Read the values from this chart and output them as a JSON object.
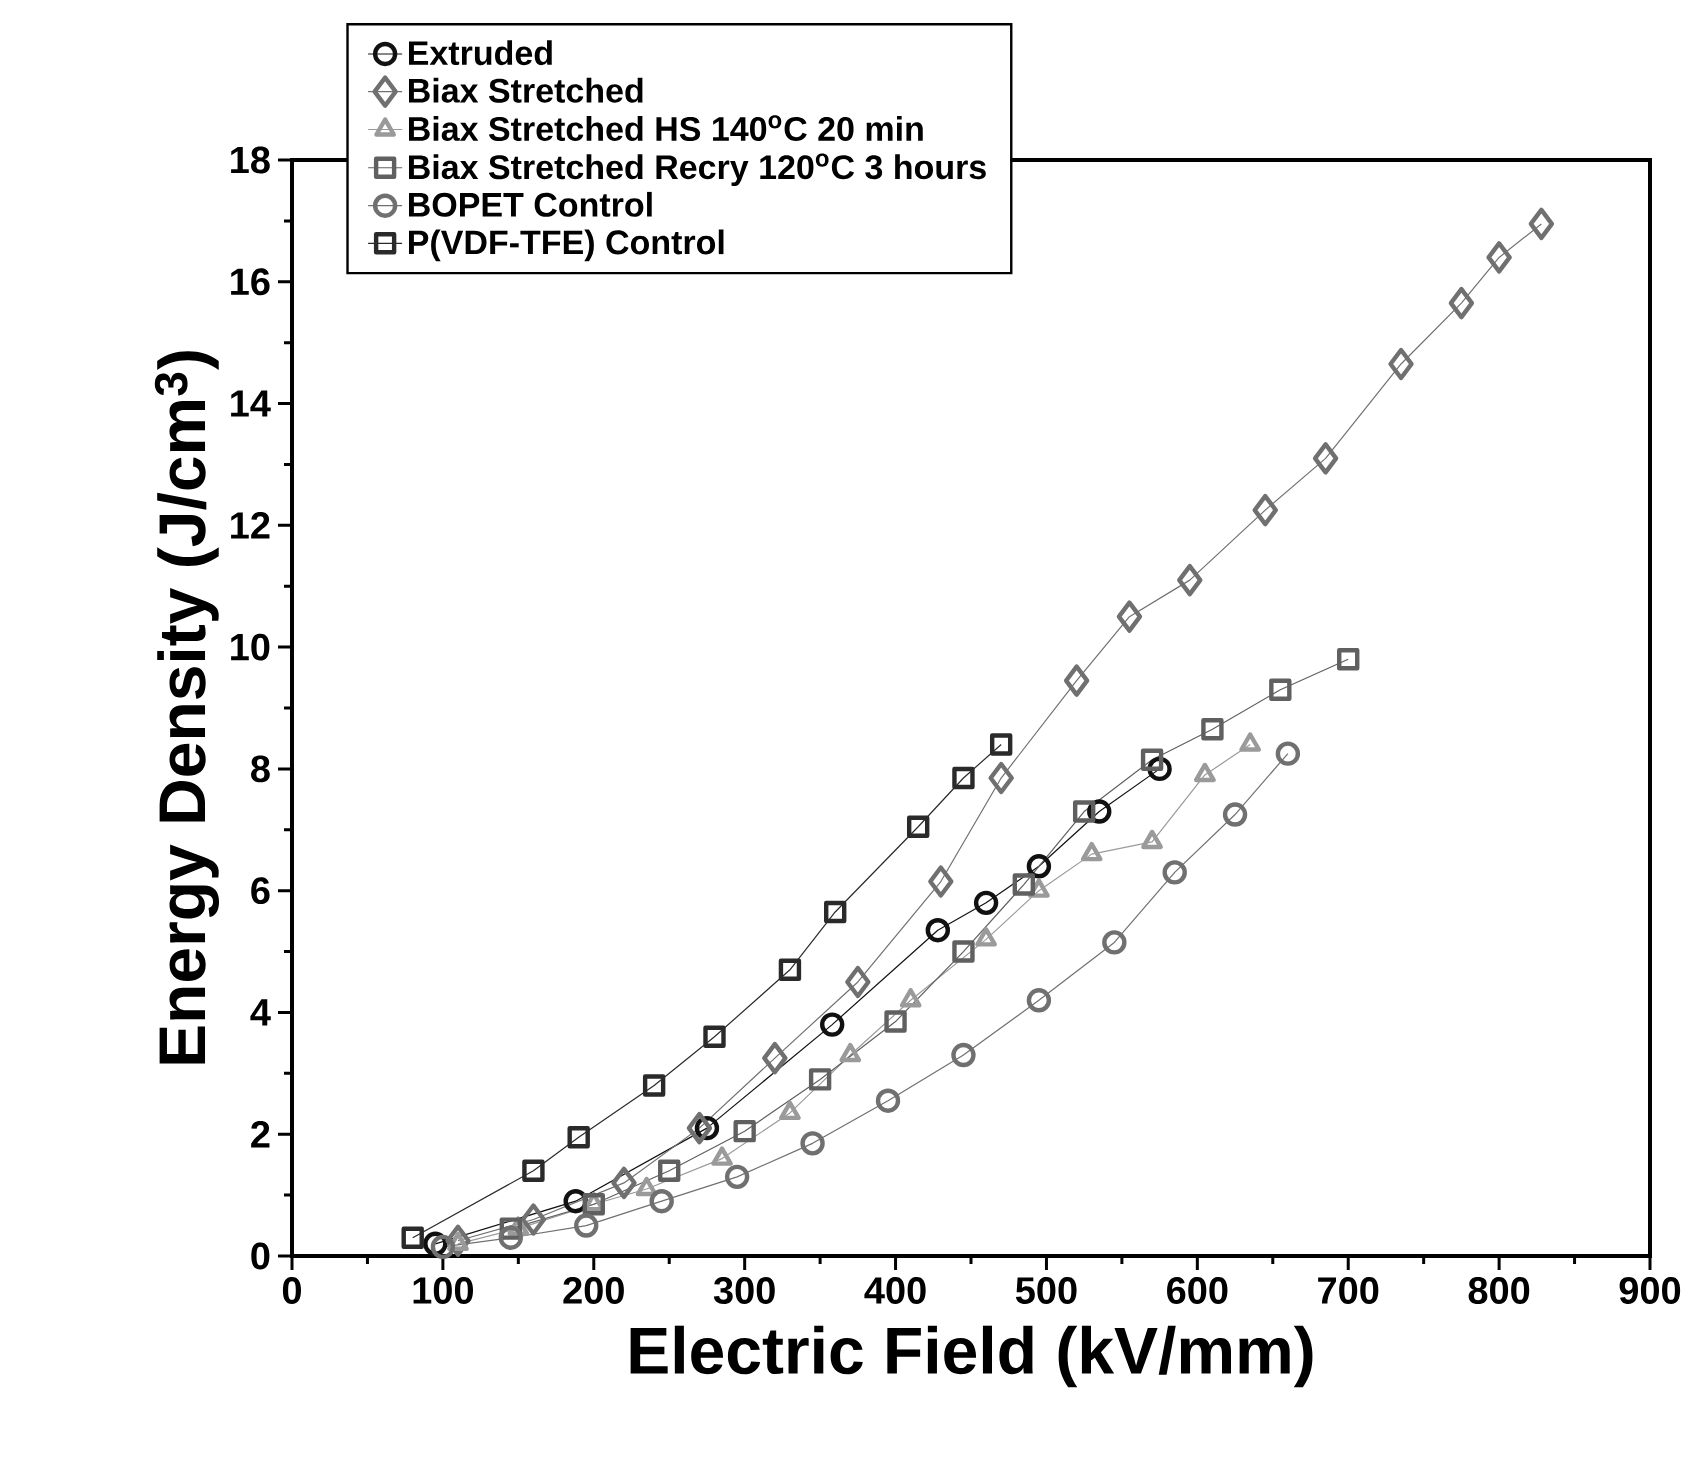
{
  "chart_data": {
    "type": "line",
    "xlabel": "Electric Field (kV/mm)",
    "ylabel": "Energy Density (J/cm$^{3}$)",
    "xlim": [
      0,
      900
    ],
    "xticks": [
      0,
      100,
      200,
      300,
      400,
      500,
      600,
      700,
      800,
      900
    ],
    "ylim": [
      0,
      18
    ],
    "yticks": [
      0,
      2,
      4,
      6,
      8,
      10,
      12,
      14,
      16,
      18
    ],
    "legend": "top left",
    "line_style": "solid",
    "grid": false,
    "series": [
      {
        "name": "Extruded",
        "color": "#111111",
        "marker": "circle",
        "x": [
          95,
          188,
          275,
          358,
          428,
          460,
          495,
          535,
          575
        ],
        "values": [
          0.2,
          0.9,
          2.1,
          3.8,
          5.35,
          5.8,
          6.4,
          7.3,
          8.0
        ]
      },
      {
        "name": "Biax Stretched",
        "color": "#707070",
        "marker": "diamond",
        "x": [
          110,
          160,
          220,
          270,
          320,
          375,
          430,
          470,
          520,
          555,
          595,
          645,
          685,
          735,
          775,
          800,
          828
        ],
        "values": [
          0.25,
          0.6,
          1.2,
          2.1,
          3.25,
          4.5,
          6.15,
          7.85,
          9.45,
          10.5,
          11.1,
          12.25,
          13.1,
          14.65,
          15.65,
          16.4,
          16.95
        ]
      },
      {
        "name": "Biax Stretched HS 140$^{o}$C 20 min",
        "color": "#9a9a9a",
        "marker": "triangle",
        "x": [
          110,
          150,
          200,
          235,
          285,
          330,
          370,
          410,
          460,
          495,
          530,
          570,
          605,
          635
        ],
        "values": [
          0.2,
          0.45,
          0.85,
          1.1,
          1.6,
          2.35,
          3.3,
          4.2,
          5.2,
          6.0,
          6.6,
          6.8,
          7.9,
          8.4
        ]
      },
      {
        "name": "Biax Stretched Recry 120$^{o}$C 3 hours",
        "color": "#606060",
        "marker": "square",
        "x": [
          145,
          200,
          250,
          300,
          350,
          400,
          445,
          485,
          525,
          570,
          610,
          655,
          700
        ],
        "values": [
          0.45,
          0.85,
          1.4,
          2.05,
          2.9,
          3.85,
          5.0,
          6.1,
          7.3,
          8.15,
          8.65,
          9.3,
          9.8
        ]
      },
      {
        "name": "BOPET Control",
        "color": "#707070",
        "marker": "circle",
        "x": [
          100,
          145,
          195,
          245,
          295,
          345,
          395,
          445,
          495,
          545,
          585,
          625,
          660
        ],
        "values": [
          0.15,
          0.3,
          0.5,
          0.9,
          1.3,
          1.85,
          2.55,
          3.3,
          4.2,
          5.15,
          6.3,
          7.25,
          8.25
        ]
      },
      {
        "name": "P(VDF-TFE) Control",
        "color": "#2a2a2a",
        "marker": "square",
        "x": [
          80,
          160,
          190,
          240,
          280,
          330,
          360,
          415,
          445,
          470
        ],
        "values": [
          0.3,
          1.4,
          1.95,
          2.8,
          3.6,
          4.7,
          5.65,
          7.05,
          7.85,
          8.4
        ]
      }
    ]
  }
}
